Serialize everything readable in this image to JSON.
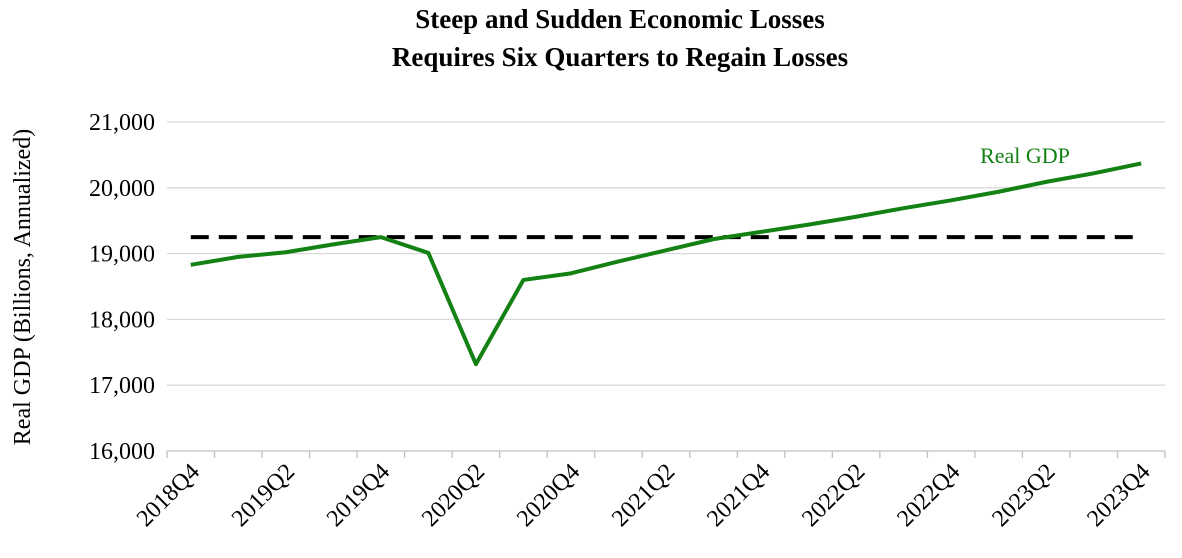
{
  "chart_data": {
    "type": "line",
    "title": [
      "Steep and Sudden Economic Losses",
      "Requires Six Quarters to Regain Losses"
    ],
    "y_label": "Real GDP (Billions, Annualized)",
    "categories": [
      "2018Q4",
      null,
      "2019Q2",
      null,
      "2019Q4",
      null,
      "2020Q2",
      null,
      "2020Q4",
      null,
      "2021Q2",
      null,
      "2021Q4",
      null,
      "2022Q2",
      null,
      "2022Q4",
      null,
      "2023Q2",
      null,
      "2023Q4"
    ],
    "series": [
      {
        "name": "Real GDP",
        "color": "#138113",
        "values": [
          18830,
          18950,
          19020,
          19140,
          19250,
          19010,
          17320,
          18600,
          18700,
          18880,
          19050,
          19220,
          19330,
          19440,
          19560,
          19690,
          19810,
          19940,
          20090,
          20220,
          20370
        ]
      }
    ],
    "reference_line": {
      "value": 19250,
      "color": "#000000"
    },
    "ylim": [
      16000,
      21000
    ],
    "yticks": [
      {
        "value": 16000,
        "label": "16,000"
      },
      {
        "value": 17000,
        "label": "17,000"
      },
      {
        "value": 18000,
        "label": "18,000"
      },
      {
        "value": 19000,
        "label": "19,000"
      },
      {
        "value": 20000,
        "label": "20,000"
      },
      {
        "value": 21000,
        "label": "21,000"
      }
    ],
    "grid": true
  }
}
